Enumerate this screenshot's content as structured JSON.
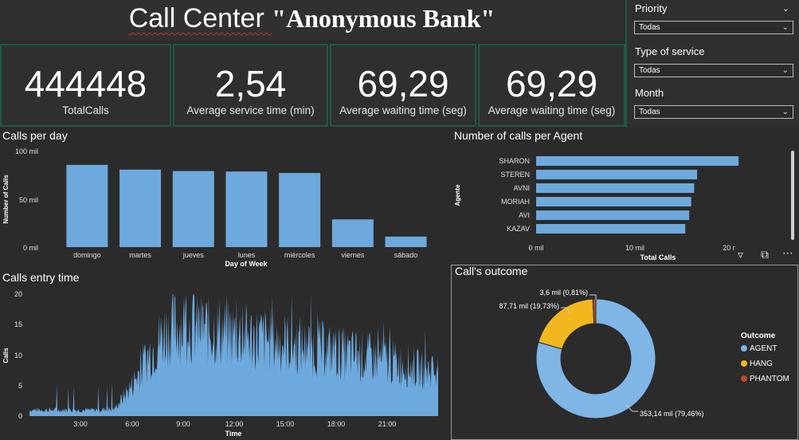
{
  "header": {
    "title_plain": "Call Center ",
    "title_bold": "\"Anonymous Bank\""
  },
  "kpis": [
    {
      "value": "444448",
      "label": "TotalCalls"
    },
    {
      "value": "2,54",
      "label": "Average service time (min)"
    },
    {
      "value": "69,29",
      "label": "Average waiting time (seg)"
    },
    {
      "value": "69,29",
      "label": "Average waiting time (seg)"
    }
  ],
  "filters": {
    "priority": {
      "label": "Priority",
      "selected": "Todas"
    },
    "service": {
      "label": "Type of service",
      "selected": "Todas"
    },
    "month": {
      "label": "Month",
      "selected": "Todas"
    }
  },
  "calls_per_day": {
    "title": "Calls per day",
    "xlabel": "Day of Week",
    "ylabel": "Number of Calls",
    "yticks": [
      "100 mil",
      "50 mil",
      "0 mil"
    ]
  },
  "calls_per_agent": {
    "title": "Number of calls per Agent",
    "xlabel": "Total Calls",
    "ylabel": "Agente",
    "xticks": [
      "0 mil",
      "10 mil",
      "20 r"
    ]
  },
  "entry_time": {
    "title": "Calls entry time",
    "xlabel": "Time",
    "ylabel": "Calls",
    "yticks": [
      "20",
      "15",
      "10",
      "5",
      "0"
    ],
    "xticks": [
      "3:00",
      "6:00",
      "9:00",
      "12:00",
      "15:00",
      "18:00",
      "21:00"
    ]
  },
  "outcome": {
    "title": "Call's outcome",
    "legend_title": "Outcome",
    "labels": {
      "agent": "353,14 mil (79,46%)",
      "hang": "87,71 mil (19,73%)",
      "phantom": "3,6 mil (0,81%)"
    }
  },
  "chart_data": [
    {
      "type": "bar",
      "title": "Calls per day",
      "xlabel": "Day of Week",
      "ylabel": "Number of Calls",
      "ylim": [
        0,
        100000
      ],
      "categories": [
        "domingo",
        "martes",
        "jueves",
        "lunes",
        "miércoles",
        "viernes",
        "sábado"
      ],
      "values": [
        86000,
        81000,
        79500,
        79000,
        77500,
        29000,
        11000
      ],
      "color": "#6ea9dd"
    },
    {
      "type": "bar",
      "orientation": "horizontal",
      "title": "Number of calls per Agent",
      "xlabel": "Total Calls",
      "ylabel": "Agente",
      "xlim": [
        0,
        20000
      ],
      "categories": [
        "SHARON",
        "STEREN",
        "AVNI",
        "MORIAH",
        "AVI",
        "KAZAV"
      ],
      "values": [
        20500,
        16300,
        16000,
        15700,
        15500,
        15100
      ],
      "color": "#6ea9dd"
    },
    {
      "type": "area",
      "title": "Calls entry time",
      "xlabel": "Time",
      "ylabel": "Calls",
      "ylim": [
        0,
        20
      ],
      "x_range": [
        "0:00",
        "24:00"
      ],
      "hourly_profile": [
        1,
        1,
        1,
        1,
        1,
        1.2,
        5,
        10,
        14,
        15,
        14.5,
        14,
        13.5,
        13,
        12.5,
        12,
        11.5,
        11,
        10.5,
        10,
        9.5,
        9,
        8.5,
        7.5
      ],
      "color": "#6ea9dd"
    },
    {
      "type": "pie",
      "title": "Call's outcome",
      "categories": [
        "AGENT",
        "HANG",
        "PHANTOM"
      ],
      "values": [
        353140,
        87710,
        3600
      ],
      "percentages": [
        79.46,
        19.73,
        0.81
      ],
      "colors": [
        "#7fb6e6",
        "#f2b71f",
        "#c0462f"
      ],
      "donut": true
    }
  ]
}
